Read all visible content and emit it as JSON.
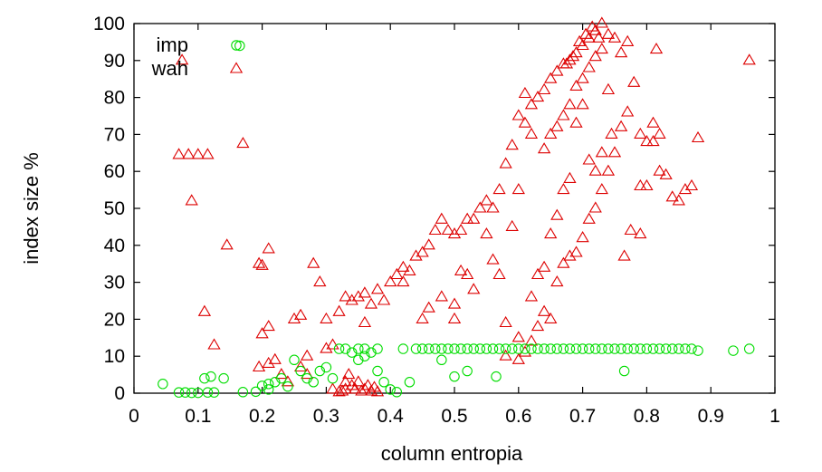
{
  "chart_data": {
    "type": "scatter",
    "title": "",
    "xlabel": "column entropia",
    "ylabel": "index size %",
    "xlim": [
      0,
      1
    ],
    "ylim": [
      0,
      100
    ],
    "x_ticks": [
      "0",
      "0.1",
      "0.2",
      "0.3",
      "0.4",
      "0.5",
      "0.6",
      "0.7",
      "0.8",
      "0.9",
      "1"
    ],
    "y_ticks": [
      "0",
      "10",
      "20",
      "30",
      "40",
      "50",
      "60",
      "70",
      "80",
      "90",
      "100"
    ],
    "grid": false,
    "legend_position": "top-left",
    "series": [
      {
        "name": "imp",
        "marker": "circle",
        "color": "#00dd00",
        "points": [
          [
            0.045,
            2.5
          ],
          [
            0.07,
            0.2
          ],
          [
            0.08,
            0.2
          ],
          [
            0.09,
            0.1
          ],
          [
            0.1,
            0.1
          ],
          [
            0.11,
            4
          ],
          [
            0.115,
            0.2
          ],
          [
            0.12,
            4.5
          ],
          [
            0.125,
            0.2
          ],
          [
            0.14,
            4
          ],
          [
            0.17,
            0.3
          ],
          [
            0.19,
            0.4
          ],
          [
            0.2,
            2
          ],
          [
            0.21,
            1
          ],
          [
            0.21,
            2.5
          ],
          [
            0.22,
            3
          ],
          [
            0.23,
            4
          ],
          [
            0.24,
            1.8
          ],
          [
            0.25,
            9
          ],
          [
            0.26,
            6
          ],
          [
            0.27,
            4
          ],
          [
            0.28,
            3
          ],
          [
            0.29,
            6
          ],
          [
            0.3,
            7
          ],
          [
            0.31,
            4
          ],
          [
            0.32,
            12
          ],
          [
            0.33,
            12
          ],
          [
            0.34,
            11
          ],
          [
            0.35,
            12
          ],
          [
            0.35,
            9
          ],
          [
            0.36,
            10
          ],
          [
            0.36,
            12
          ],
          [
            0.37,
            11
          ],
          [
            0.38,
            12
          ],
          [
            0.38,
            6
          ],
          [
            0.39,
            3
          ],
          [
            0.4,
            1
          ],
          [
            0.41,
            0.3
          ],
          [
            0.42,
            12
          ],
          [
            0.43,
            3
          ],
          [
            0.44,
            12
          ],
          [
            0.45,
            12
          ],
          [
            0.46,
            12
          ],
          [
            0.47,
            12
          ],
          [
            0.48,
            12
          ],
          [
            0.48,
            9
          ],
          [
            0.49,
            12
          ],
          [
            0.5,
            12
          ],
          [
            0.5,
            4.5
          ],
          [
            0.51,
            12
          ],
          [
            0.52,
            12
          ],
          [
            0.52,
            6
          ],
          [
            0.53,
            12
          ],
          [
            0.54,
            12
          ],
          [
            0.55,
            12
          ],
          [
            0.56,
            12
          ],
          [
            0.565,
            4.5
          ],
          [
            0.57,
            12
          ],
          [
            0.58,
            12
          ],
          [
            0.59,
            12
          ],
          [
            0.6,
            12
          ],
          [
            0.61,
            12
          ],
          [
            0.62,
            12
          ],
          [
            0.63,
            12
          ],
          [
            0.64,
            12
          ],
          [
            0.65,
            12
          ],
          [
            0.66,
            12
          ],
          [
            0.67,
            12
          ],
          [
            0.68,
            12
          ],
          [
            0.69,
            12
          ],
          [
            0.7,
            12
          ],
          [
            0.71,
            12
          ],
          [
            0.72,
            12
          ],
          [
            0.73,
            12
          ],
          [
            0.74,
            12
          ],
          [
            0.75,
            12
          ],
          [
            0.76,
            12
          ],
          [
            0.765,
            6
          ],
          [
            0.77,
            12
          ],
          [
            0.78,
            12
          ],
          [
            0.79,
            12
          ],
          [
            0.8,
            12
          ],
          [
            0.81,
            12
          ],
          [
            0.82,
            12
          ],
          [
            0.83,
            12
          ],
          [
            0.84,
            12
          ],
          [
            0.85,
            12
          ],
          [
            0.86,
            12
          ],
          [
            0.87,
            12
          ],
          [
            0.88,
            11.5
          ],
          [
            0.935,
            11.5
          ],
          [
            0.96,
            12
          ],
          [
            0.165,
            94
          ]
        ]
      },
      {
        "name": "wah",
        "marker": "triangle",
        "color": "#dd0000",
        "points": [
          [
            0.07,
            64.5
          ],
          [
            0.085,
            64.5
          ],
          [
            0.1,
            64.5
          ],
          [
            0.115,
            64.5
          ],
          [
            0.09,
            52
          ],
          [
            0.11,
            22
          ],
          [
            0.125,
            13
          ],
          [
            0.145,
            40
          ],
          [
            0.17,
            67.5
          ],
          [
            0.195,
            35
          ],
          [
            0.2,
            34.5
          ],
          [
            0.21,
            39
          ],
          [
            0.2,
            16
          ],
          [
            0.195,
            7
          ],
          [
            0.21,
            8
          ],
          [
            0.22,
            9
          ],
          [
            0.21,
            18
          ],
          [
            0.23,
            5
          ],
          [
            0.25,
            20
          ],
          [
            0.26,
            21
          ],
          [
            0.27,
            10
          ],
          [
            0.28,
            35
          ],
          [
            0.29,
            30
          ],
          [
            0.3,
            20
          ],
          [
            0.31,
            13
          ],
          [
            0.32,
            22
          ],
          [
            0.33,
            26
          ],
          [
            0.34,
            25
          ],
          [
            0.35,
            26
          ],
          [
            0.36,
            27
          ],
          [
            0.36,
            19
          ],
          [
            0.37,
            24
          ],
          [
            0.38,
            28
          ],
          [
            0.39,
            25
          ],
          [
            0.4,
            30
          ],
          [
            0.41,
            32
          ],
          [
            0.42,
            34
          ],
          [
            0.43,
            33
          ],
          [
            0.44,
            37
          ],
          [
            0.45,
            38
          ],
          [
            0.46,
            40
          ],
          [
            0.47,
            44
          ],
          [
            0.48,
            47
          ],
          [
            0.49,
            44
          ],
          [
            0.5,
            43
          ],
          [
            0.51,
            44
          ],
          [
            0.52,
            47
          ],
          [
            0.53,
            47
          ],
          [
            0.54,
            50
          ],
          [
            0.55,
            52
          ],
          [
            0.56,
            50
          ],
          [
            0.57,
            55
          ],
          [
            0.58,
            62
          ],
          [
            0.59,
            67
          ],
          [
            0.6,
            75
          ],
          [
            0.61,
            73
          ],
          [
            0.62,
            78
          ],
          [
            0.63,
            80
          ],
          [
            0.64,
            82
          ],
          [
            0.65,
            85
          ],
          [
            0.66,
            87
          ],
          [
            0.67,
            89
          ],
          [
            0.68,
            90
          ],
          [
            0.69,
            92
          ],
          [
            0.7,
            94
          ],
          [
            0.71,
            96
          ],
          [
            0.72,
            98
          ],
          [
            0.73,
            100
          ],
          [
            0.74,
            97
          ],
          [
            0.75,
            96
          ],
          [
            0.76,
            92
          ],
          [
            0.77,
            95
          ],
          [
            0.78,
            84
          ],
          [
            0.79,
            70
          ],
          [
            0.8,
            68
          ],
          [
            0.81,
            73
          ],
          [
            0.82,
            70
          ],
          [
            0.83,
            59
          ],
          [
            0.84,
            53
          ],
          [
            0.85,
            52
          ],
          [
            0.86,
            55
          ],
          [
            0.87,
            56
          ],
          [
            0.88,
            69
          ],
          [
            0.815,
            93
          ],
          [
            0.96,
            90
          ],
          [
            0.5,
            20
          ],
          [
            0.51,
            33
          ],
          [
            0.52,
            32
          ],
          [
            0.53,
            28
          ],
          [
            0.5,
            24
          ],
          [
            0.48,
            26
          ],
          [
            0.45,
            20
          ],
          [
            0.46,
            23
          ],
          [
            0.42,
            30
          ],
          [
            0.55,
            43
          ],
          [
            0.56,
            36
          ],
          [
            0.57,
            32
          ],
          [
            0.58,
            19
          ],
          [
            0.6,
            15
          ],
          [
            0.62,
            26
          ],
          [
            0.63,
            32
          ],
          [
            0.64,
            22
          ],
          [
            0.65,
            20
          ],
          [
            0.66,
            30
          ],
          [
            0.67,
            35
          ],
          [
            0.68,
            37
          ],
          [
            0.69,
            38
          ],
          [
            0.7,
            42
          ],
          [
            0.71,
            47
          ],
          [
            0.72,
            50
          ],
          [
            0.73,
            55
          ],
          [
            0.74,
            60
          ],
          [
            0.75,
            65
          ],
          [
            0.76,
            72
          ],
          [
            0.77,
            76
          ],
          [
            0.775,
            44
          ],
          [
            0.79,
            56
          ],
          [
            0.8,
            56
          ],
          [
            0.81,
            68
          ],
          [
            0.82,
            60
          ],
          [
            0.765,
            37
          ],
          [
            0.79,
            43
          ],
          [
            0.64,
            66
          ],
          [
            0.65,
            70
          ],
          [
            0.66,
            72
          ],
          [
            0.67,
            75
          ],
          [
            0.68,
            78
          ],
          [
            0.69,
            83
          ],
          [
            0.7,
            85
          ],
          [
            0.71,
            88
          ],
          [
            0.72,
            91
          ],
          [
            0.73,
            93
          ],
          [
            0.74,
            82
          ],
          [
            0.745,
            70
          ],
          [
            0.73,
            65
          ],
          [
            0.72,
            60
          ],
          [
            0.71,
            63
          ],
          [
            0.7,
            78
          ],
          [
            0.69,
            73
          ],
          [
            0.68,
            58
          ],
          [
            0.67,
            55
          ],
          [
            0.66,
            48
          ],
          [
            0.65,
            43
          ],
          [
            0.64,
            34
          ],
          [
            0.63,
            18
          ],
          [
            0.62,
            14
          ],
          [
            0.61,
            11
          ],
          [
            0.6,
            9
          ],
          [
            0.58,
            10
          ],
          [
            0.59,
            45
          ],
          [
            0.6,
            55
          ],
          [
            0.61,
            81
          ],
          [
            0.62,
            70
          ],
          [
            0.675,
            89
          ],
          [
            0.685,
            91
          ],
          [
            0.695,
            95
          ],
          [
            0.705,
            97
          ],
          [
            0.715,
            99
          ],
          [
            0.725,
            96
          ],
          [
            0.33,
            3
          ],
          [
            0.33,
            1
          ],
          [
            0.335,
            5
          ],
          [
            0.34,
            2
          ],
          [
            0.325,
            0.5
          ],
          [
            0.345,
            1
          ],
          [
            0.35,
            3
          ],
          [
            0.355,
            0.5
          ],
          [
            0.36,
            1
          ],
          [
            0.365,
            2
          ],
          [
            0.37,
            0.5
          ],
          [
            0.375,
            1.5
          ],
          [
            0.38,
            0.3
          ],
          [
            0.31,
            1
          ],
          [
            0.32,
            0.3
          ],
          [
            0.3,
            12
          ],
          [
            0.27,
            5
          ],
          [
            0.26,
            7
          ],
          [
            0.24,
            3
          ],
          [
            0.075,
            90
          ]
        ]
      }
    ]
  }
}
